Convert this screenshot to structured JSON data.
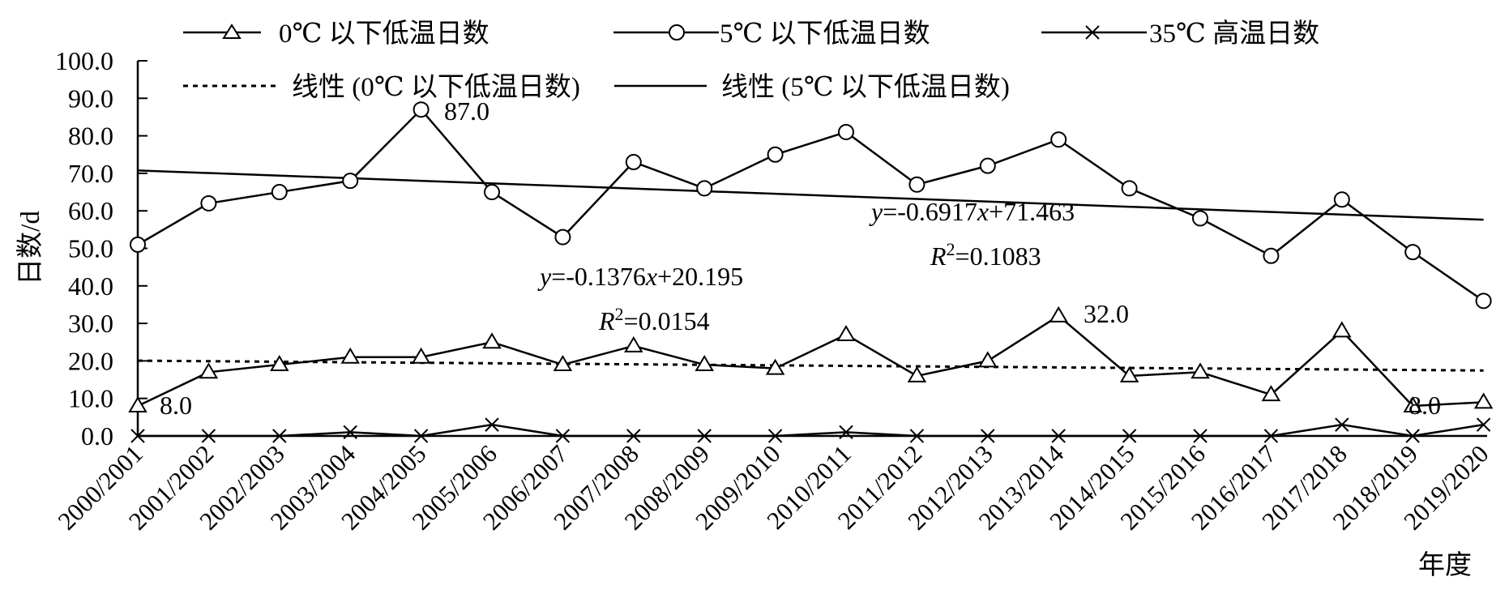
{
  "chart_data": {
    "type": "line",
    "categories": [
      "2000/2001",
      "2001/2002",
      "2002/2003",
      "2003/2004",
      "2004/2005",
      "2005/2006",
      "2006/2007",
      "2007/2008",
      "2008/2009",
      "2009/2010",
      "2010/2011",
      "2011/2012",
      "2012/2013",
      "2013/2014",
      "2014/2015",
      "2015/2016",
      "2016/2017",
      "2017/2018",
      "2018/2019",
      "2019/2020"
    ],
    "series": [
      {
        "name": "0℃ 以下低温日数",
        "marker": "triangle",
        "values": [
          8,
          17,
          19,
          21,
          21,
          25,
          19,
          24,
          19,
          18,
          27,
          16,
          20,
          32,
          16,
          17,
          11,
          28,
          8,
          9
        ]
      },
      {
        "name": "5℃ 以下低温日数",
        "marker": "circle",
        "values": [
          51,
          62,
          65,
          68,
          87,
          65,
          53,
          73,
          66,
          75,
          81,
          67,
          72,
          79,
          66,
          58,
          48,
          63,
          49,
          36
        ]
      },
      {
        "name": "35℃ 高温日数",
        "marker": "x",
        "values": [
          0,
          0,
          0,
          1,
          0,
          3,
          0,
          0,
          0,
          0,
          1,
          0,
          0,
          0,
          0,
          0,
          0,
          3,
          0,
          3
        ]
      }
    ],
    "trendlines": [
      {
        "name": "线性 (0℃ 以下低温日数)",
        "style": "dotted",
        "slope": -0.1376,
        "intercept": 20.195,
        "equation": "=-0.1376",
        "equation_x": "x",
        "equation_rest": "+20.195",
        "r2": "=0.0154"
      },
      {
        "name": "线性 (5℃ 以下低温日数)",
        "style": "solid",
        "slope": -0.6917,
        "intercept": 71.463,
        "equation": "=-0.6917",
        "equation_x": "x",
        "equation_rest": "+71.463",
        "r2": "=0.1083"
      }
    ],
    "annotations": [
      {
        "series": 1,
        "index": 4,
        "text": "87.0"
      },
      {
        "series": 0,
        "index": 0,
        "text": "8.0"
      },
      {
        "series": 0,
        "index": 13,
        "text": "32.0"
      },
      {
        "series": 0,
        "index": 18,
        "text": "8.0"
      }
    ],
    "yticks": [
      "0.0",
      "10.0",
      "20.0",
      "30.0",
      "40.0",
      "50.0",
      "60.0",
      "70.0",
      "80.0",
      "90.0",
      "100.0"
    ],
    "ylim": [
      0,
      100
    ],
    "ylabel": "日数/d",
    "xlabel": "年度",
    "eq_y": "y",
    "eq_r": "R",
    "eq_sup": "2",
    "grid": false,
    "legend_position": "top"
  }
}
